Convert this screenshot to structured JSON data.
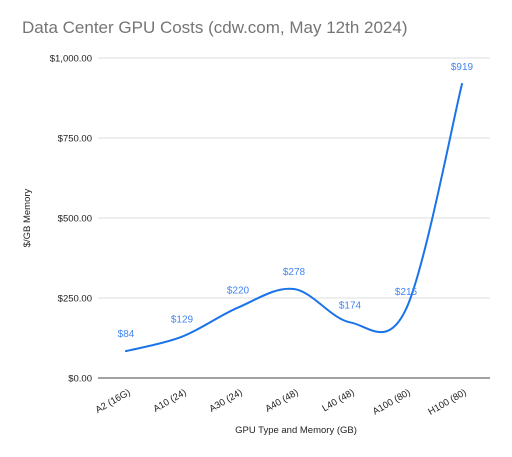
{
  "chart_data": {
    "type": "line",
    "title": "Data Center GPU Costs (cdw.com, May 12th 2024)",
    "xlabel": "GPU Type and Memory (GB)",
    "ylabel": "$/GB Memory",
    "categories": [
      "A2 (16G)",
      "A10 (24)",
      "A30 (24)",
      "A40 (48)",
      "L40 (48)",
      "A100 (80)",
      "H100 (80)"
    ],
    "series": [
      {
        "values": [
          84,
          129,
          220,
          278,
          174,
          215,
          919
        ],
        "data_labels": [
          "$84",
          "$129",
          "$220",
          "$278",
          "$174",
          "$215",
          "$919"
        ]
      }
    ],
    "ylim": [
      0,
      1000
    ],
    "y_ticks": [
      0,
      250,
      500,
      750,
      1000
    ],
    "y_tick_labels": [
      "$0.00",
      "$250.00",
      "$500.00",
      "$750.00",
      "$1,000.00"
    ],
    "smooth": true,
    "grid": "horizontal",
    "legend": "none",
    "colors": {
      "line": "#1a73e8",
      "label": "#4285f4",
      "grid": "#dddddd",
      "axis": "#444444",
      "title": "#757575"
    }
  }
}
